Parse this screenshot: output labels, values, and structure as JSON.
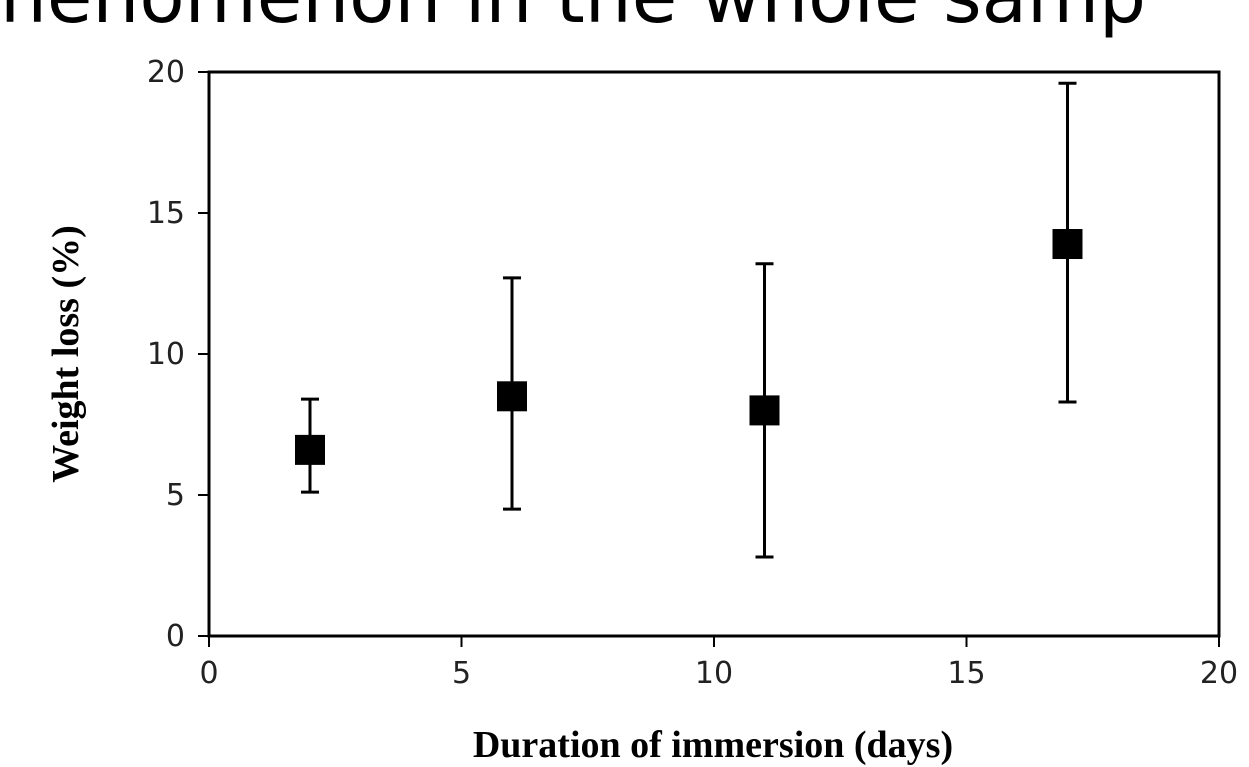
{
  "top_caption": "henomenon in the whole samp",
  "chart_data": {
    "type": "scatter",
    "title": "",
    "xlabel": "Duration of immersion (days)",
    "ylabel": "Weight loss (%)",
    "xlim": [
      0,
      20
    ],
    "ylim": [
      0,
      20
    ],
    "xticks": [
      0,
      5,
      10,
      15,
      20
    ],
    "yticks": [
      0,
      5,
      10,
      15,
      20
    ],
    "grid": false,
    "marker": "square",
    "marker_color": "#000000",
    "error_bars": true,
    "points": [
      {
        "x": 2,
        "y": 6.6,
        "y_low": 5.1,
        "y_high": 8.4
      },
      {
        "x": 6,
        "y": 8.5,
        "y_low": 4.5,
        "y_high": 12.7
      },
      {
        "x": 11,
        "y": 8.0,
        "y_low": 2.8,
        "y_high": 13.2
      },
      {
        "x": 17,
        "y": 13.9,
        "y_low": 8.3,
        "y_high": 19.6
      }
    ]
  }
}
